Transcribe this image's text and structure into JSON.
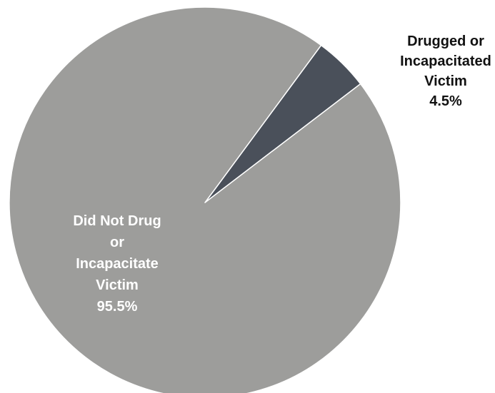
{
  "chart_data": {
    "type": "pie",
    "title": "",
    "slices": [
      {
        "label_lines": [
          "Drugged or",
          "Incapacitated",
          "Victim"
        ],
        "value": 4.5,
        "value_text": "4.5%",
        "color": "#4a505a",
        "label_color": "#111111"
      },
      {
        "label_lines": [
          "Did Not Drug",
          "or",
          "Incapacitate",
          "Victim"
        ],
        "value": 95.5,
        "value_text": "95.5%",
        "color": "#9d9d9b",
        "label_color": "#ffffff"
      }
    ],
    "legend": "none",
    "start_angle_deg": 37.4,
    "direction": "counterclockwise"
  }
}
